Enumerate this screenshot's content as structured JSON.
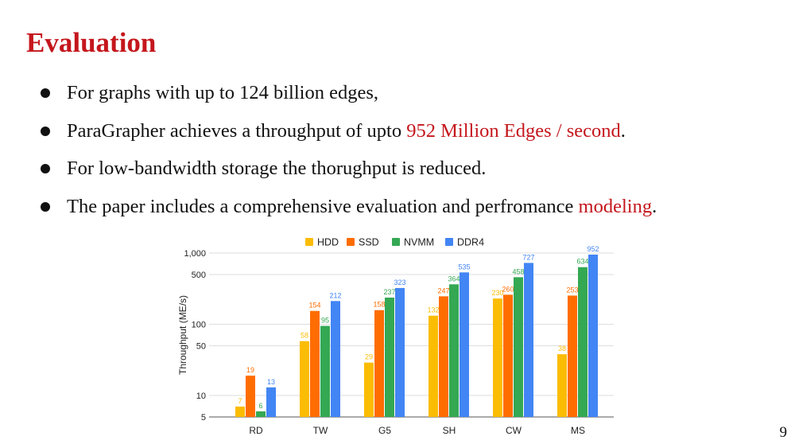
{
  "slide": {
    "title": "Evaluation",
    "bullets": [
      {
        "parts": [
          "For graphs with up to 124 billion edges,"
        ]
      },
      {
        "parts": [
          "ParaGrapher achieves a throughput of upto ",
          "952 Million Edges / second",
          "."
        ]
      },
      {
        "parts": [
          "For low-bandwidth storage the thorughput is reduced."
        ]
      },
      {
        "parts": [
          "The paper includes a comprehensive evaluation and perfromance ",
          "modeling",
          "."
        ]
      }
    ],
    "page_number": "9",
    "accent_color": "#c4161c"
  },
  "chart_data": {
    "type": "bar",
    "title": "",
    "xlabel": "",
    "ylabel": "Throughput  (ME/s)",
    "yscale": "log",
    "ylim": [
      5,
      1000
    ],
    "yticks": [
      5,
      10,
      50,
      100,
      500,
      1000
    ],
    "ytick_labels": [
      "5",
      "10",
      "50",
      "100",
      "500",
      "1,000"
    ],
    "grid": true,
    "legend_position": "top",
    "categories": [
      "RD",
      "TW",
      "G5",
      "SH",
      "CW",
      "MS"
    ],
    "series": [
      {
        "name": "HDD",
        "color": "#fbbc04",
        "values": [
          7,
          58,
          29,
          132,
          230,
          38
        ]
      },
      {
        "name": "SSD",
        "color": "#ff6d01",
        "values": [
          19,
          154,
          158,
          247,
          260,
          253
        ]
      },
      {
        "name": "NVMM",
        "color": "#34a853",
        "values": [
          6,
          95,
          237,
          364,
          458,
          634
        ]
      },
      {
        "name": "DDR4",
        "color": "#4285f4",
        "values": [
          13,
          212,
          323,
          535,
          727,
          952
        ]
      }
    ]
  }
}
